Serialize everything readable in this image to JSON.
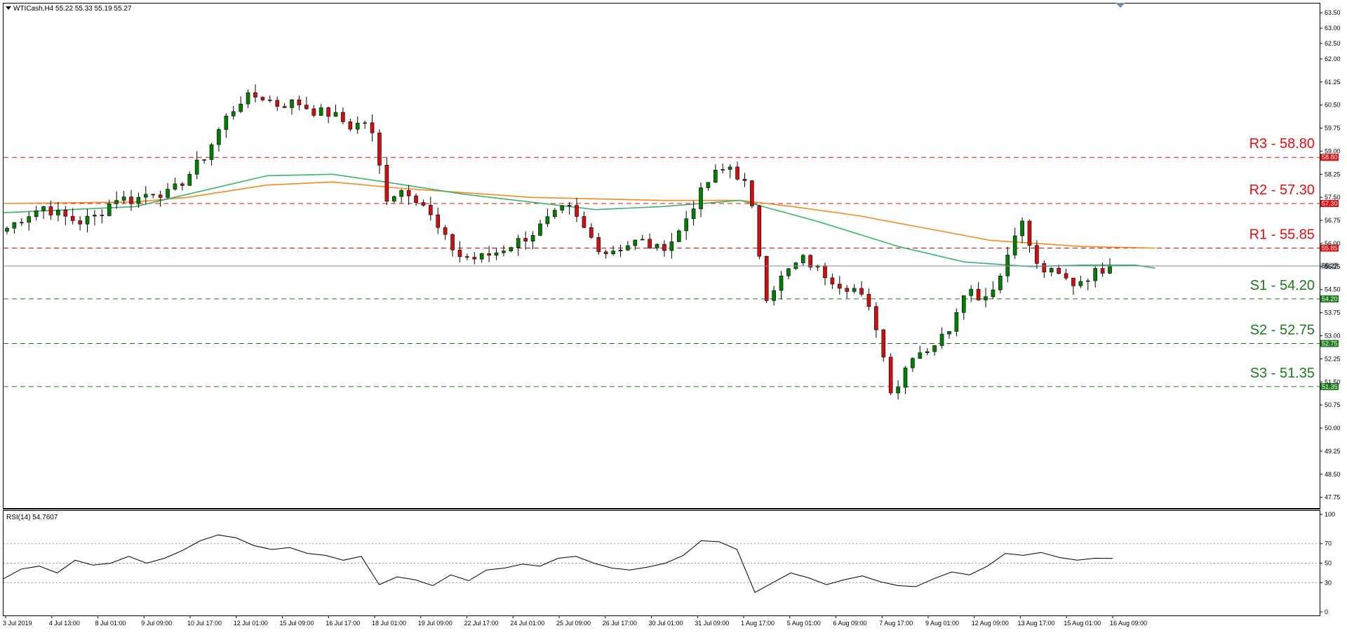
{
  "header": {
    "symbol_info": "WTICash,H4  55.22 55.33 55.19 55.27",
    "rsi_info": "RSI(14) 54.7607"
  },
  "colors": {
    "bull": "#008000",
    "bear": "#d01010",
    "ma_fast": "#3cb371",
    "ma_slow": "#f5891f",
    "resistance": "#e01010",
    "support": "#1e7a1e",
    "price_line": "#7f8fa6"
  },
  "chart_data": [
    {
      "type": "candlestick",
      "symbol": "WTICash",
      "timeframe": "H4",
      "ylim": [
        47.4,
        63.8
      ],
      "y_ticks": [
        "63.50",
        "63.00",
        "62.50",
        "62.00",
        "61.25",
        "60.50",
        "59.75",
        "59.00",
        "58.25",
        "57.50",
        "56.75",
        "56.00",
        "55.25",
        "54.50",
        "53.75",
        "53.00",
        "52.25",
        "51.50",
        "50.75",
        "50.00",
        "49.25",
        "48.50",
        "47.75"
      ],
      "x_labels": [
        "3 Jul 2019",
        "4 Jul 13:00",
        "8 Jul 01:00",
        "9 Jul 09:00",
        "10 Jul 17:00",
        "12 Jul 01:00",
        "15 Jul 09:00",
        "16 Jul 17:00",
        "18 Jul 01:00",
        "19 Jul 09:00",
        "22 Jul 17:00",
        "24 Jul 01:00",
        "25 Jul 09:00",
        "26 Jul 17:00",
        "30 Jul 01:00",
        "31 Jul 09:00",
        "1 Aug 17:00",
        "5 Aug 01:00",
        "6 Aug 09:00",
        "7 Aug 17:00",
        "9 Aug 01:00",
        "12 Aug 09:00",
        "13 Aug 17:00",
        "15 Aug 01:00",
        "16 Aug 09:00"
      ],
      "current_price": "55.27",
      "levels": [
        {
          "label": "R3 - 58.80",
          "value": 58.8,
          "badge": "58.80",
          "kind": "resistance"
        },
        {
          "label": "R2 - 57.30",
          "value": 57.3,
          "badge": "57.30",
          "kind": "resistance"
        },
        {
          "label": "R1 - 55.85",
          "value": 55.85,
          "badge": "55.85",
          "kind": "resistance"
        },
        {
          "label": "S1 - 54.20",
          "value": 54.2,
          "badge": "54.20",
          "kind": "support"
        },
        {
          "label": "S2 - 52.75",
          "value": 52.75,
          "badge": "52.75",
          "kind": "support"
        },
        {
          "label": "S3 - 51.35",
          "value": 51.35,
          "badge": "51.35",
          "kind": "support"
        }
      ],
      "anchors": [
        56.5,
        56.9,
        57.2,
        56.9,
        56.7,
        56.9,
        57.5,
        57.4,
        57.7,
        57.6,
        58.2,
        58.9,
        60.0,
        60.7,
        60.8,
        60.5,
        60.6,
        60.3,
        60.2,
        59.8,
        60.0,
        57.5,
        57.8,
        57.3,
        56.3,
        55.6,
        55.5,
        55.7,
        56.0,
        56.3,
        56.8,
        57.2,
        56.4,
        55.7,
        55.9,
        56.1,
        55.8,
        56.2,
        57.3,
        58.2,
        58.5,
        57.8,
        54.3,
        55.0,
        55.5,
        55.1,
        54.7,
        54.5,
        53.5,
        51.0,
        52.4,
        52.6,
        53.1,
        54.6,
        54.2,
        55.0,
        56.9,
        55.2,
        55.0,
        54.7,
        55.0,
        55.3
      ],
      "ma_fast": [
        [
          0,
          57.0
        ],
        [
          0.1,
          57.2
        ],
        [
          0.14,
          57.6
        ],
        [
          0.2,
          58.2
        ],
        [
          0.25,
          58.25
        ],
        [
          0.29,
          58.0
        ],
        [
          0.35,
          57.6
        ],
        [
          0.45,
          57.1
        ],
        [
          0.5,
          57.2
        ],
        [
          0.56,
          57.4
        ],
        [
          0.62,
          56.7
        ],
        [
          0.68,
          55.9
        ],
        [
          0.73,
          55.4
        ],
        [
          0.78,
          55.25
        ],
        [
          0.82,
          55.3
        ],
        [
          0.86,
          55.3
        ],
        [
          0.875,
          55.2
        ]
      ],
      "ma_slow": [
        [
          0,
          57.3
        ],
        [
          0.1,
          57.35
        ],
        [
          0.14,
          57.5
        ],
        [
          0.2,
          57.9
        ],
        [
          0.25,
          58.0
        ],
        [
          0.3,
          57.8
        ],
        [
          0.4,
          57.5
        ],
        [
          0.5,
          57.4
        ],
        [
          0.56,
          57.4
        ],
        [
          0.6,
          57.2
        ],
        [
          0.65,
          56.9
        ],
        [
          0.7,
          56.5
        ],
        [
          0.75,
          56.1
        ],
        [
          0.82,
          55.9
        ],
        [
          0.875,
          55.85
        ]
      ]
    },
    {
      "type": "line",
      "name": "RSI(14)",
      "ylim": [
        0,
        100
      ],
      "y_ticks": [
        "100",
        "70",
        "50",
        "30",
        "0"
      ],
      "values": [
        34,
        44,
        47,
        40,
        53,
        48,
        50,
        57,
        50,
        55,
        63,
        73,
        79,
        76,
        68,
        64,
        66,
        60,
        58,
        53,
        57,
        28,
        36,
        33,
        27,
        38,
        32,
        43,
        45,
        49,
        47,
        55,
        57,
        50,
        45,
        43,
        46,
        50,
        58,
        73,
        72,
        64,
        20,
        30,
        40,
        35,
        28,
        33,
        37,
        31,
        27,
        26,
        34,
        41,
        38,
        47,
        60,
        58,
        61,
        56,
        53,
        55,
        54.8
      ]
    }
  ]
}
